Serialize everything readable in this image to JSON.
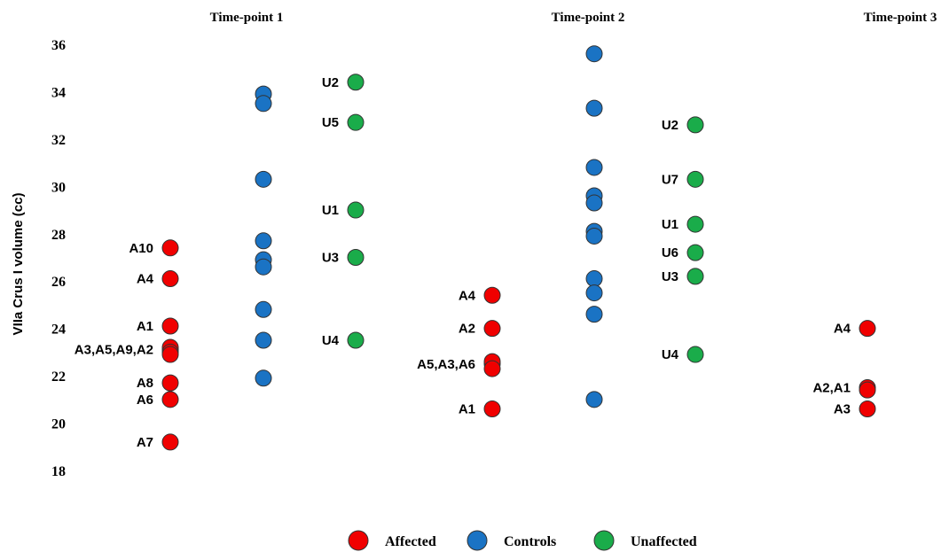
{
  "chart_data": {
    "type": "scatter",
    "ylabel": "VIIa Crus I volume (cc)",
    "ylim": [
      18,
      36
    ],
    "yticks": [
      18,
      20,
      22,
      24,
      26,
      28,
      30,
      32,
      34,
      36
    ],
    "colors": {
      "Affected": "#f00000",
      "Controls": "#1a73c4",
      "Unaffected": "#1aac4a"
    },
    "legend": [
      "Affected",
      "Controls",
      "Unaffected"
    ],
    "legend_position": "bottom",
    "timepoints": [
      {
        "title": "Time-point 1",
        "groups": [
          {
            "name": "Affected",
            "points": [
              {
                "label": "A10",
                "y": 27.4
              },
              {
                "label": "A4",
                "y": 26.1
              },
              {
                "label": "A1",
                "y": 24.1
              },
              {
                "label": "A3,A5,A9,A2",
                "y": 23.1
              },
              {
                "label": "",
                "y": 23.2
              },
              {
                "label": "",
                "y": 23.0
              },
              {
                "label": "",
                "y": 22.9
              },
              {
                "label": "A8",
                "y": 21.7
              },
              {
                "label": "A6",
                "y": 21.0
              },
              {
                "label": "A7",
                "y": 19.2
              }
            ]
          },
          {
            "name": "Controls",
            "points": [
              {
                "label": "",
                "y": 33.9
              },
              {
                "label": "",
                "y": 33.5
              },
              {
                "label": "",
                "y": 30.3
              },
              {
                "label": "",
                "y": 27.7
              },
              {
                "label": "",
                "y": 26.9
              },
              {
                "label": "",
                "y": 26.6
              },
              {
                "label": "",
                "y": 24.8
              },
              {
                "label": "",
                "y": 23.5
              },
              {
                "label": "",
                "y": 21.9
              }
            ]
          },
          {
            "name": "Unaffected",
            "points": [
              {
                "label": "U2",
                "y": 34.4
              },
              {
                "label": "U5",
                "y": 32.7
              },
              {
                "label": "U1",
                "y": 29.0
              },
              {
                "label": "U3",
                "y": 27.0
              },
              {
                "label": "U4",
                "y": 23.5
              }
            ]
          }
        ]
      },
      {
        "title": "Time-point 2",
        "groups": [
          {
            "name": "Affected",
            "points": [
              {
                "label": "A4",
                "y": 25.4
              },
              {
                "label": "A2",
                "y": 24.0
              },
              {
                "label": "A5,A3,A6",
                "y": 22.5
              },
              {
                "label": "",
                "y": 22.6
              },
              {
                "label": "",
                "y": 22.3
              },
              {
                "label": "A1",
                "y": 20.6
              }
            ]
          },
          {
            "name": "Controls",
            "points": [
              {
                "label": "",
                "y": 35.6
              },
              {
                "label": "",
                "y": 33.3
              },
              {
                "label": "",
                "y": 30.8
              },
              {
                "label": "",
                "y": 29.6
              },
              {
                "label": "",
                "y": 29.3
              },
              {
                "label": "",
                "y": 28.1
              },
              {
                "label": "",
                "y": 27.9
              },
              {
                "label": "",
                "y": 26.1
              },
              {
                "label": "",
                "y": 25.5
              },
              {
                "label": "",
                "y": 24.6
              },
              {
                "label": "",
                "y": 21.0
              }
            ]
          },
          {
            "name": "Unaffected",
            "points": [
              {
                "label": "U2",
                "y": 32.6
              },
              {
                "label": "U7",
                "y": 30.3
              },
              {
                "label": "U1",
                "y": 28.4
              },
              {
                "label": "U6",
                "y": 27.2
              },
              {
                "label": "U3",
                "y": 26.2
              },
              {
                "label": "U4",
                "y": 22.9
              }
            ]
          }
        ]
      },
      {
        "title": "Time-point 3",
        "groups": [
          {
            "name": "Affected",
            "points": [
              {
                "label": "A4",
                "y": 24.0
              },
              {
                "label": "A2,A1",
                "y": 21.5
              },
              {
                "label": "",
                "y": 21.4
              },
              {
                "label": "A3",
                "y": 20.6
              }
            ]
          }
        ]
      }
    ]
  }
}
